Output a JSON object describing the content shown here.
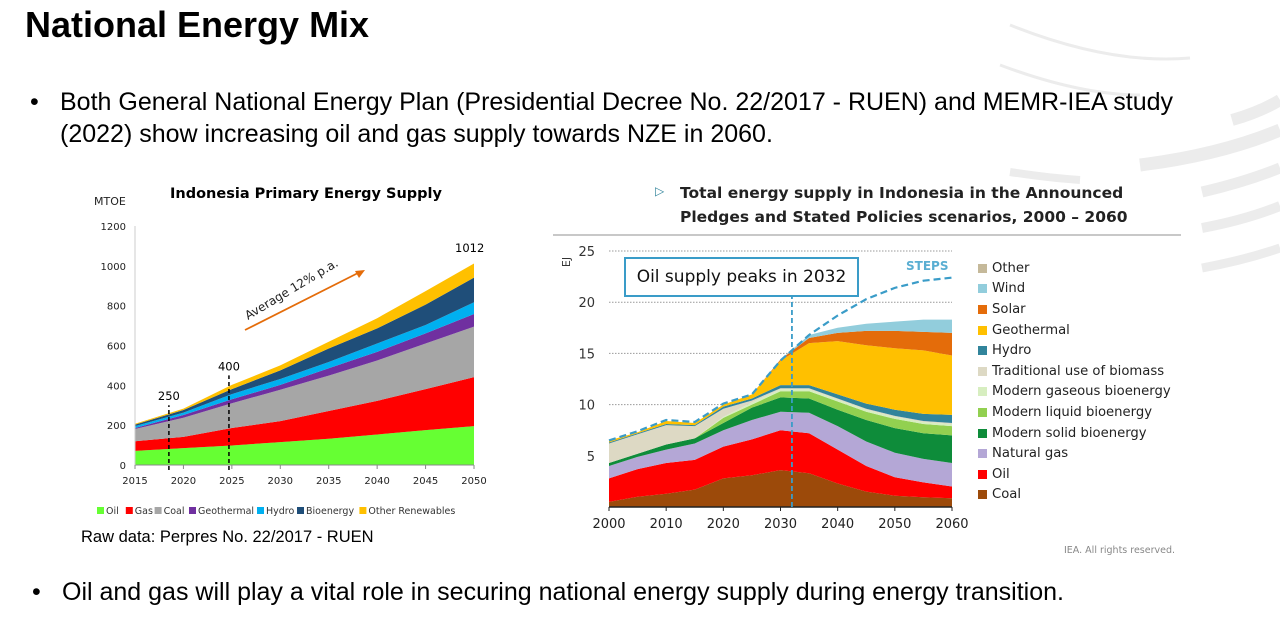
{
  "slide": {
    "title": "National Energy Mix",
    "bullets": [
      "Both General National Energy Plan (Presidential Decree No. 22/2017 - RUEN) and MEMR-IEA study (2022) show increasing oil and gas supply towards NZE in 2060.",
      "Oil and gas will play a vital role in securing national energy supply during energy transition."
    ],
    "bullet_glyph": "•"
  },
  "left_chart_source": "Raw data: Perpres No. 22/2017 - RUEN",
  "right_chart_header": {
    "icon": "triangle-right-icon",
    "title": "Total energy supply in Indonesia in the Announced Pledges and Stated Policies scenarios, 2000 – 2060",
    "credit": "IEA. All rights reserved."
  },
  "chart_data": [
    {
      "type": "area",
      "stacked": true,
      "title": "Indonesia Primary Energy Supply",
      "ylabel": "MTOE",
      "xlabel": "",
      "x": [
        2015,
        2020,
        2025,
        2030,
        2035,
        2040,
        2045,
        2050
      ],
      "xticks": [
        "2015",
        "2020",
        "2025",
        "2030",
        "2035",
        "2040",
        "2045",
        "2050"
      ],
      "yticks": [
        "0",
        "200",
        "400",
        "600",
        "800",
        "1000",
        "1200"
      ],
      "ylim": [
        0,
        1200
      ],
      "grid": false,
      "legend": "bottom",
      "series": [
        {
          "name": "Oil",
          "color": "#66ff33",
          "values": [
            71,
            85,
            98,
            115,
            132,
            153,
            175,
            195
          ]
        },
        {
          "name": "Gas",
          "color": "#ff0000",
          "values": [
            48,
            56,
            88,
            105,
            139,
            169,
            206,
            246
          ]
        },
        {
          "name": "Coal",
          "color": "#a6a6a6",
          "values": [
            62,
            96,
            124,
            158,
            178,
            203,
            229,
            254
          ]
        },
        {
          "name": "Geothermal",
          "color": "#7030a0",
          "values": [
            5,
            14,
            20,
            24,
            37,
            43,
            51,
            63
          ]
        },
        {
          "name": "Hydro",
          "color": "#00b0f0",
          "values": [
            9,
            12,
            26,
            30,
            31,
            42,
            42,
            59
          ]
        },
        {
          "name": "Bioenergy",
          "color": "#1f4e79",
          "values": [
            8,
            13,
            25,
            43,
            68,
            76,
            102,
            124
          ]
        },
        {
          "name": "Other Renewables",
          "color": "#ffc000",
          "values": [
            4,
            7,
            21,
            25,
            34,
            51,
            68,
            71
          ]
        }
      ],
      "annotations": {
        "markers": [
          {
            "x": 2018.5,
            "value": 250,
            "label": "250"
          },
          {
            "x": 2024.7,
            "value": 400,
            "label": "400"
          }
        ],
        "end_label": "1012",
        "growth_label": "Average 12% p.a.",
        "growth_arrow_color": "#e46c0a"
      }
    },
    {
      "type": "area",
      "stacked": true,
      "ylabel": "EJ",
      "xlabel": "",
      "x": [
        2000,
        2005,
        2010,
        2015,
        2020,
        2025,
        2030,
        2035,
        2040,
        2045,
        2050,
        2055,
        2060
      ],
      "xticks": [
        "2000",
        "2010",
        "2020",
        "2030",
        "2040",
        "2050",
        "2060"
      ],
      "yticks": [
        "5",
        "10",
        "15",
        "20",
        "25"
      ],
      "ylim": [
        0,
        25
      ],
      "grid": "dotted horizontal",
      "legend": "right",
      "series": [
        {
          "name": "Coal",
          "color": "#9c4a0a",
          "values": [
            0.5,
            1.0,
            1.3,
            1.7,
            2.8,
            3.1,
            3.6,
            3.3,
            2.3,
            1.5,
            1.1,
            0.95,
            0.85
          ]
        },
        {
          "name": "Oil",
          "color": "#ff0000",
          "values": [
            2.3,
            2.7,
            3.0,
            2.9,
            3.1,
            3.5,
            3.9,
            3.9,
            3.3,
            2.5,
            1.8,
            1.45,
            1.15
          ]
        },
        {
          "name": "Natural gas",
          "color": "#b4a7d6",
          "values": [
            1.2,
            1.2,
            1.3,
            1.6,
            1.6,
            1.9,
            1.8,
            2.0,
            2.3,
            2.4,
            2.4,
            2.3,
            2.3
          ]
        },
        {
          "name": "Modern solid bioenergy",
          "color": "#0e8c3a",
          "values": [
            0.3,
            0.3,
            0.5,
            0.5,
            0.7,
            1.2,
            1.4,
            1.4,
            1.6,
            2.1,
            2.4,
            2.5,
            2.7
          ]
        },
        {
          "name": "Modern liquid bioenergy",
          "color": "#92d050",
          "values": [
            0,
            0,
            0,
            0,
            0.5,
            0.3,
            0.6,
            0.7,
            0.8,
            0.8,
            0.9,
            0.9,
            0.9
          ]
        },
        {
          "name": "Modern gaseous bioenergy",
          "color": "#d7eec0",
          "values": [
            0,
            0,
            0,
            0,
            0.1,
            0.2,
            0.2,
            0.2,
            0.2,
            0.2,
            0.2,
            0.2,
            0.2
          ]
        },
        {
          "name": "Traditional use of biomass",
          "color": "#ddd9c4",
          "values": [
            1.9,
            1.9,
            1.9,
            1.2,
            0.8,
            0.2,
            0.1,
            0.1,
            0.1,
            0.1,
            0.1,
            0.1,
            0.1
          ]
        },
        {
          "name": "Hydro",
          "color": "#31849b",
          "values": [
            0.1,
            0.1,
            0.1,
            0.1,
            0.2,
            0.2,
            0.3,
            0.3,
            0.4,
            0.5,
            0.6,
            0.7,
            0.8
          ]
        },
        {
          "name": "Geothermal",
          "color": "#ffc000",
          "values": [
            0.2,
            0.1,
            0.3,
            0.2,
            0.2,
            0.4,
            2.4,
            4.1,
            5.2,
            5.7,
            6.0,
            6.2,
            5.8
          ]
        },
        {
          "name": "Solar",
          "color": "#e46c0a",
          "values": [
            0,
            0,
            0,
            0,
            0,
            0,
            0.1,
            0.5,
            0.8,
            1.4,
            1.7,
            1.8,
            2.2
          ]
        },
        {
          "name": "Wind",
          "color": "#92cddc",
          "values": [
            0,
            0,
            0,
            0,
            0,
            0,
            0,
            0.3,
            0.5,
            0.7,
            0.9,
            1.2,
            1.3
          ]
        },
        {
          "name": "Other",
          "color": "#c5b99a",
          "values": [
            0,
            0,
            0,
            0,
            0,
            0,
            0,
            0,
            0,
            0,
            0,
            0,
            0
          ]
        }
      ],
      "line_series": {
        "name": "STEPS",
        "color": "#3a9cc8",
        "dashed": true,
        "values": [
          6.5,
          7.4,
          8.5,
          8.3,
          10.1,
          11.0,
          14.3,
          16.8,
          18.7,
          20.3,
          21.4,
          22.1,
          22.4
        ]
      },
      "annotations": {
        "callout": "Oil supply peaks in 2032",
        "peak_year": 2032
      },
      "legend_order": [
        "Other",
        "Wind",
        "Solar",
        "Geothermal",
        "Hydro",
        "Traditional use of biomass",
        "Modern gaseous bioenergy",
        "Modern liquid bioenergy",
        "Modern solid bioenergy",
        "Natural gas",
        "Oil",
        "Coal"
      ]
    }
  ]
}
